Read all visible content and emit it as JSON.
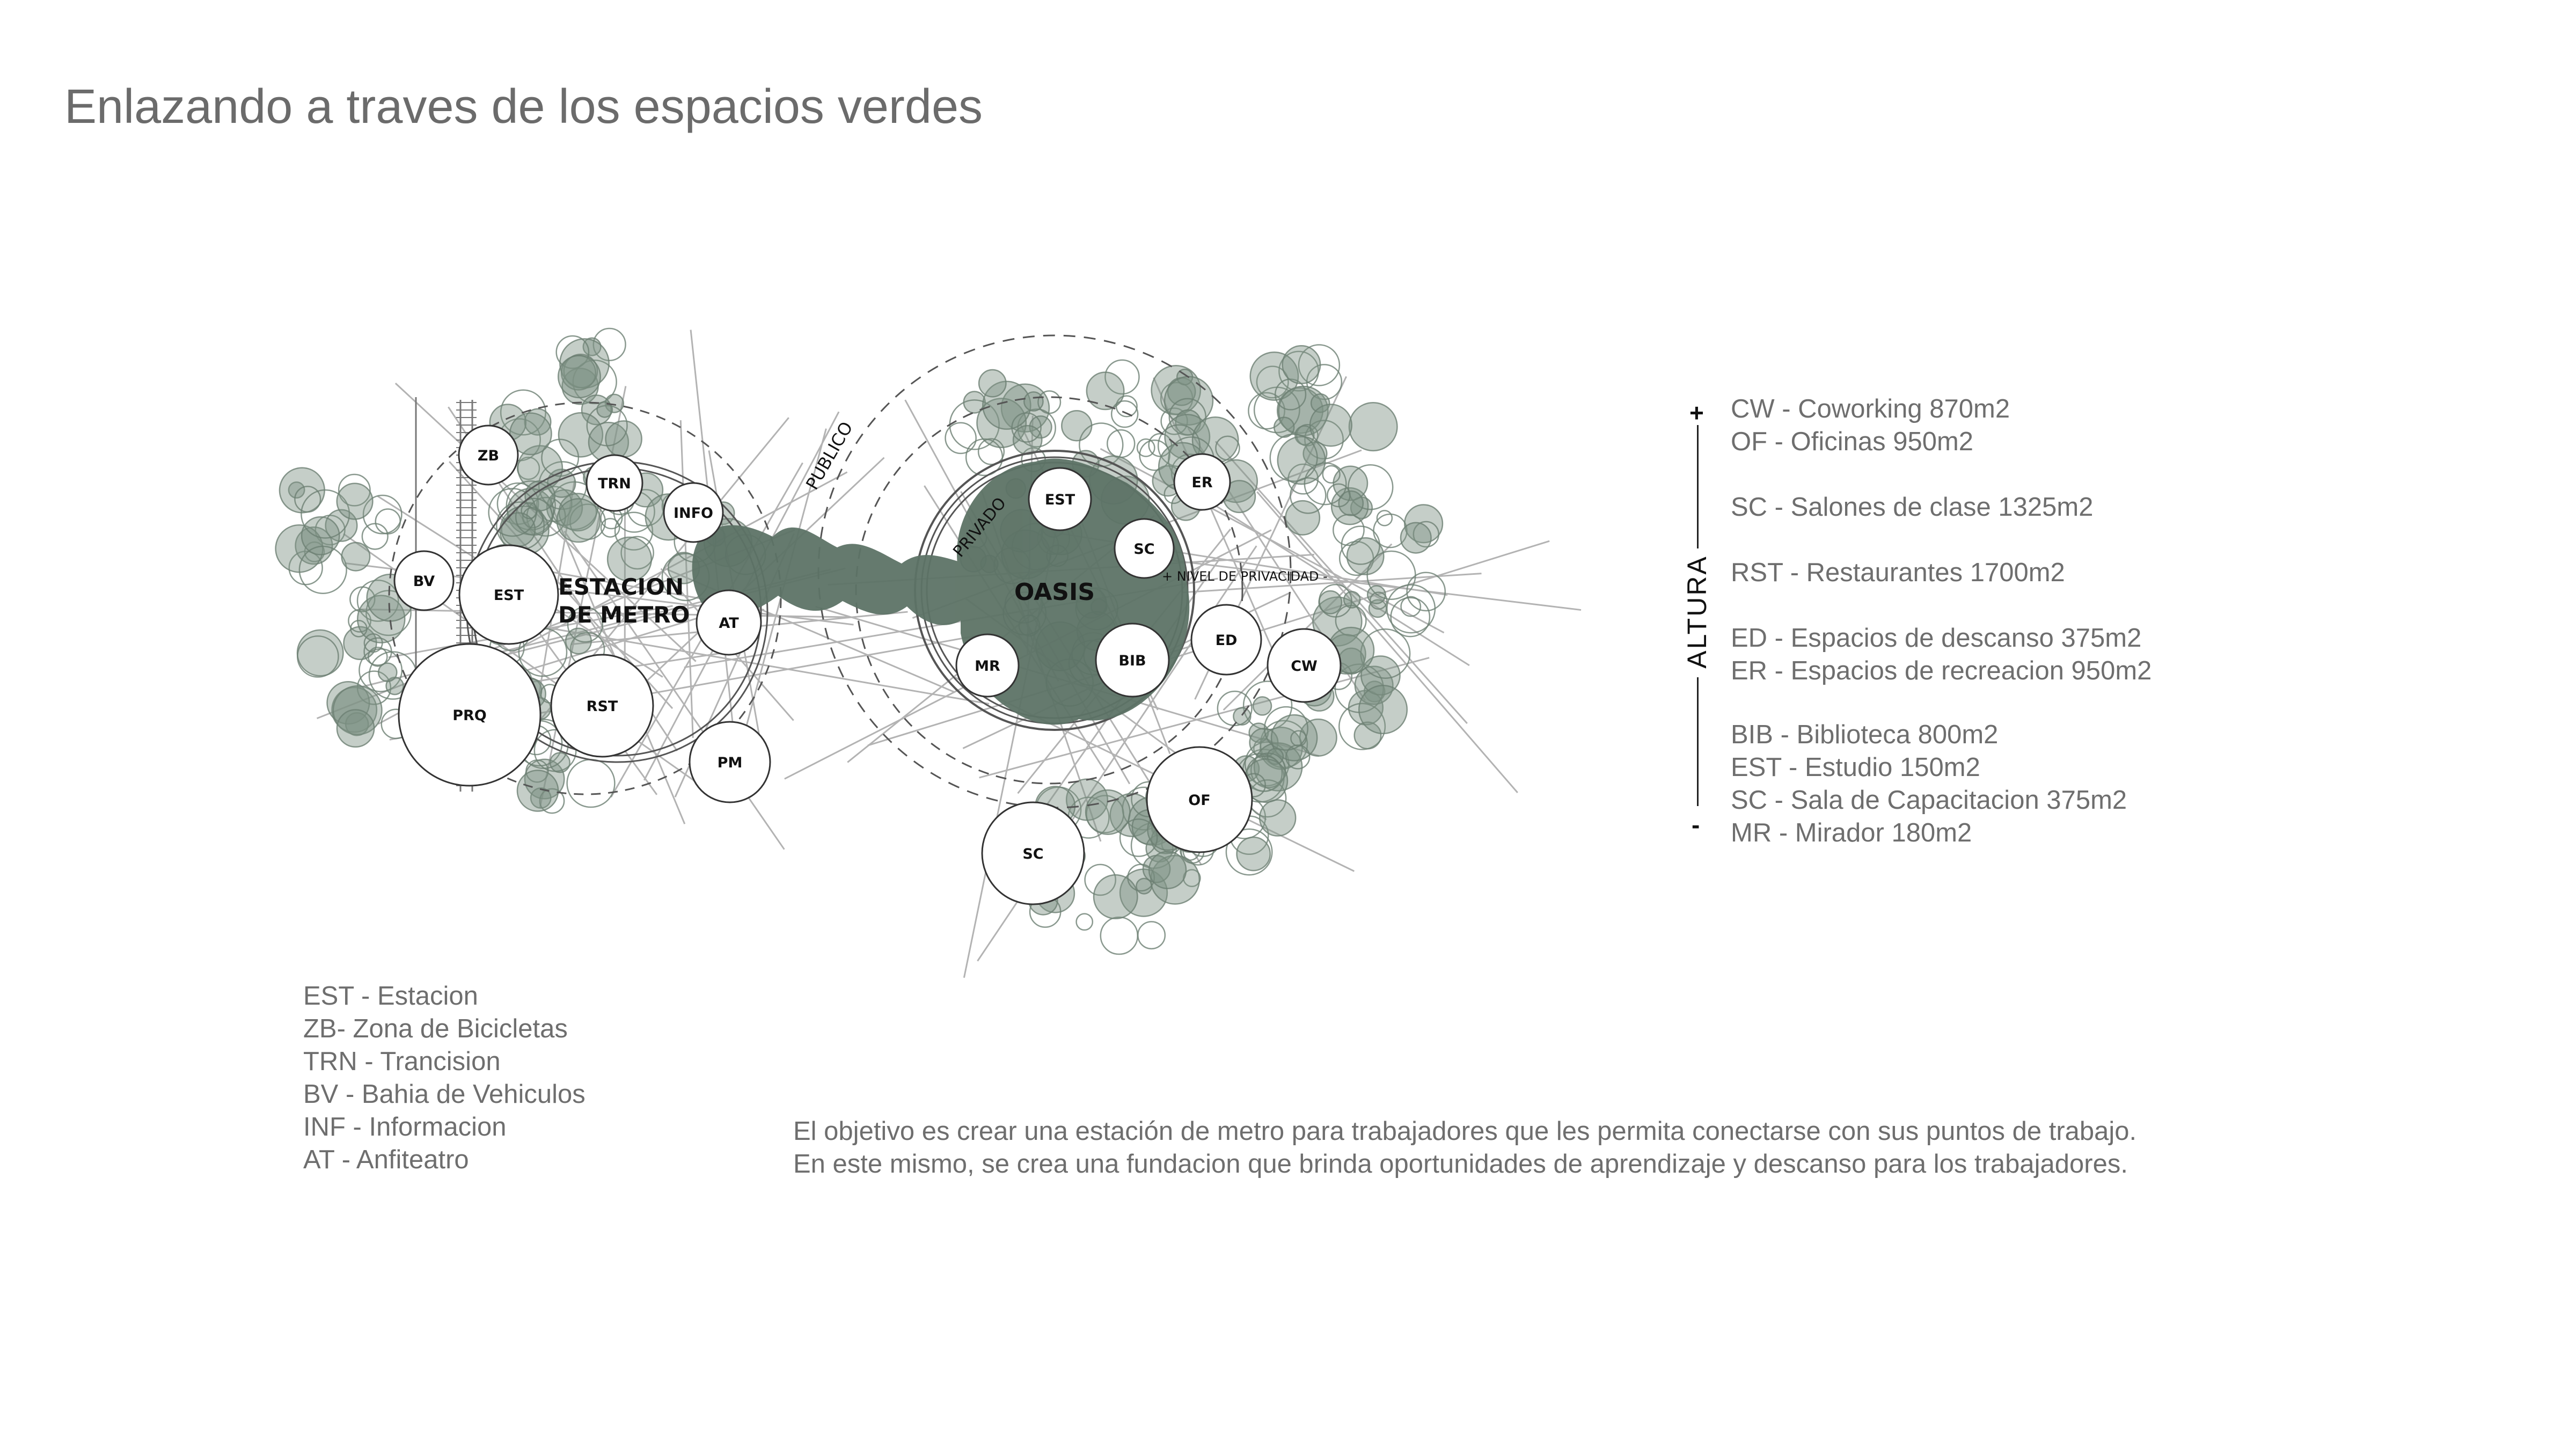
{
  "title": "Enlazando a traves de los espacios verdes",
  "diagram": {
    "zones": {
      "station": [
        "ESTACION",
        "DE METRO"
      ],
      "oasis": "OASIS",
      "publico": "PUBLICO",
      "privado": "PRIVADO",
      "privacy_level": "+ NIVEL DE PRIVACIDAD -"
    },
    "nodes": [
      "ZB",
      "TRN",
      "INFO",
      "BV",
      "EST",
      "AT",
      "PRQ",
      "RST",
      "PM",
      "EST",
      "SC",
      "ER",
      "MR",
      "BIB",
      "ED",
      "CW",
      "OF",
      "SC"
    ],
    "colors": {
      "green_fill": "#5d7366",
      "tree": "#7f9386",
      "line": "#9a9a9a"
    }
  },
  "height_scale": {
    "label": "ALTURA",
    "plus": "+",
    "minus": "-"
  },
  "legend_right": [
    "CW - Coworking 870m2",
    "OF - Oficinas 950m2",
    "",
    "SC - Salones de clase 1325m2",
    "",
    "RST - Restaurantes 1700m2",
    "",
    "ED - Espacios de descanso 375m2",
    "ER - Espacios de recreacion 950m2",
    "",
    "BIB - Biblioteca 800m2",
    "EST - Estudio 150m2",
    "SC - Sala de Capacitacion 375m2",
    "MR - Mirador 180m2"
  ],
  "legend_left": [
    "EST - Estacion",
    "ZB-  Zona de Bicicletas",
    "TRN - Trancision",
    "BV - Bahia de Vehiculos",
    "INF - Informacion",
    "AT - Anfiteatro"
  ],
  "description": [
    "El objetivo es crear una estación de metro para trabajadores que les permita conectarse con sus puntos de trabajo.",
    "En este mismo, se crea una fundacion que brinda oportunidades de aprendizaje y descanso para los trabajadores."
  ]
}
